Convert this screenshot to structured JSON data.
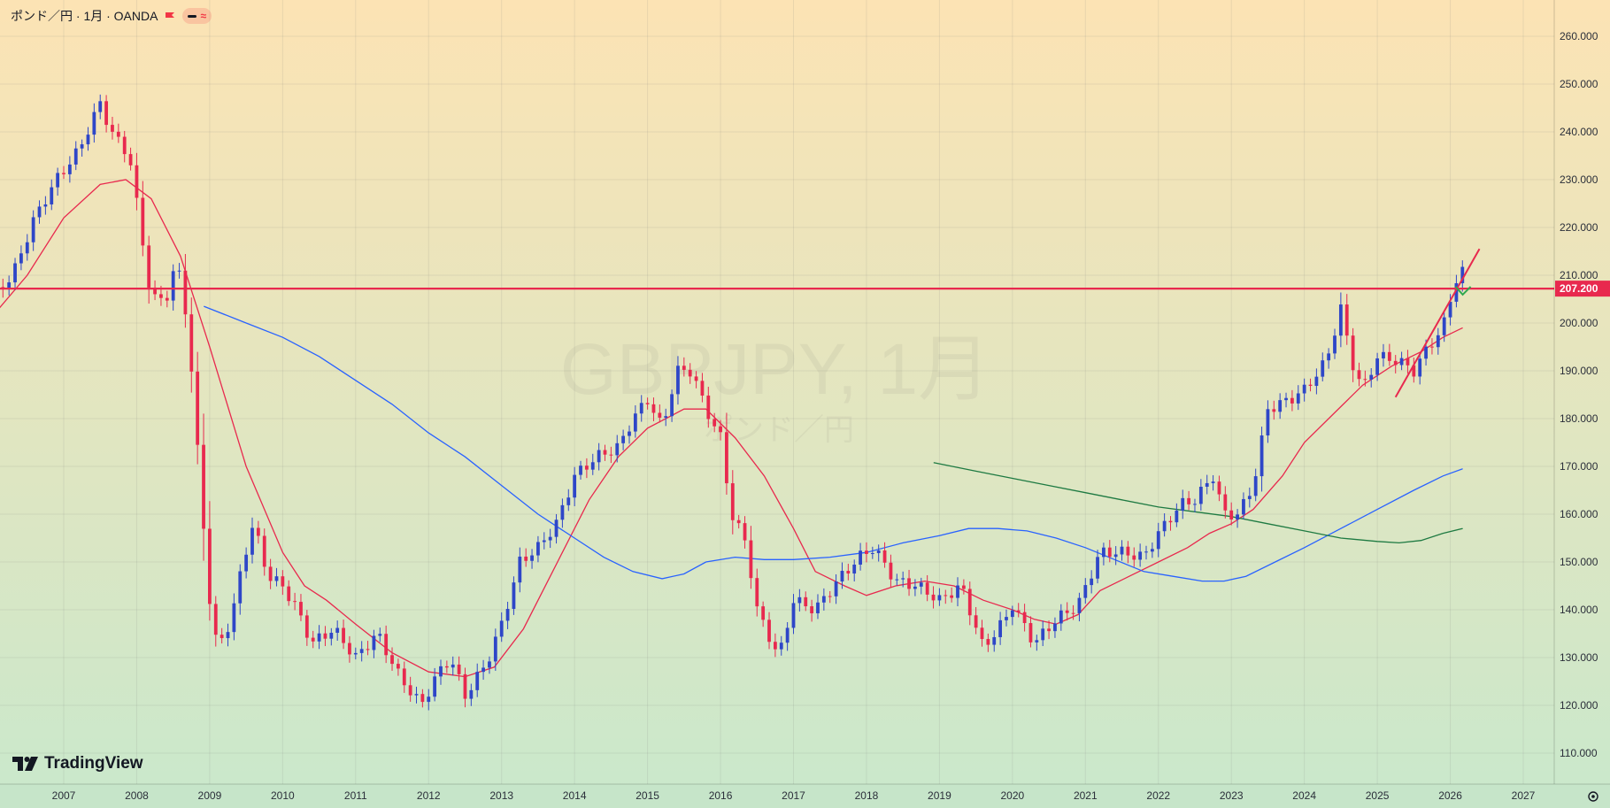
{
  "header": {
    "title": "ポンド／円 · 1月 · OANDA",
    "flag_icon": "red-flag-icon",
    "pill_icons": [
      "dash-icon",
      "wave-icon"
    ]
  },
  "watermark": {
    "symbol": "GBPJPY, 1月",
    "name": "ポンド／円"
  },
  "branding": {
    "logo_text": "TradingView"
  },
  "colors": {
    "bg_top": "#fce3b4",
    "bg_bottom": "#c9e8cc",
    "up_candle": "#2e46c8",
    "down_candle": "#e8294e",
    "ma_red": "#e8294e",
    "ma_blue": "#2962ff",
    "ma_green": "#1e7a42",
    "hline": "#e8294e",
    "marker_green": "#2fa84f"
  },
  "chart_data": {
    "type": "candlestick",
    "instrument": "GBPJPY",
    "timeframe": "1月",
    "source": "OANDA",
    "x_labels": [
      "2007",
      "2008",
      "2009",
      "2010",
      "2011",
      "2012",
      "2013",
      "2014",
      "2015",
      "2016",
      "2017",
      "2018",
      "2019",
      "2020",
      "2021",
      "2022",
      "2023",
      "2024",
      "2025",
      "2026",
      "2027"
    ],
    "y_ticks": [
      "110.000",
      "120.000",
      "130.000",
      "140.000",
      "150.000",
      "160.000",
      "170.000",
      "180.000",
      "190.000",
      "200.000",
      "210.000",
      "220.000",
      "230.000",
      "240.000",
      "250.000",
      "260.000"
    ],
    "ylim": [
      104,
      266
    ],
    "grid": true,
    "price_line": {
      "value": 207.2,
      "label": "207.200"
    },
    "anchors": [
      {
        "x": 2006.0,
        "y": 205
      },
      {
        "x": 2006.3,
        "y": 210
      },
      {
        "x": 2006.6,
        "y": 222
      },
      {
        "x": 2006.9,
        "y": 230
      },
      {
        "x": 2007.2,
        "y": 236
      },
      {
        "x": 2007.5,
        "y": 246
      },
      {
        "x": 2007.65,
        "y": 240
      },
      {
        "x": 2007.9,
        "y": 235
      },
      {
        "x": 2008.0,
        "y": 225
      },
      {
        "x": 2008.2,
        "y": 205
      },
      {
        "x": 2008.4,
        "y": 205
      },
      {
        "x": 2008.55,
        "y": 213
      },
      {
        "x": 2008.7,
        "y": 200
      },
      {
        "x": 2008.85,
        "y": 170
      },
      {
        "x": 2009.0,
        "y": 142
      },
      {
        "x": 2009.1,
        "y": 132
      },
      {
        "x": 2009.3,
        "y": 138
      },
      {
        "x": 2009.45,
        "y": 150
      },
      {
        "x": 2009.6,
        "y": 158
      },
      {
        "x": 2009.8,
        "y": 147
      },
      {
        "x": 2010.0,
        "y": 145
      },
      {
        "x": 2010.2,
        "y": 140
      },
      {
        "x": 2010.4,
        "y": 133
      },
      {
        "x": 2010.7,
        "y": 136
      },
      {
        "x": 2011.0,
        "y": 130
      },
      {
        "x": 2011.3,
        "y": 135
      },
      {
        "x": 2011.6,
        "y": 126
      },
      {
        "x": 2011.9,
        "y": 120
      },
      {
        "x": 2012.1,
        "y": 126
      },
      {
        "x": 2012.3,
        "y": 130
      },
      {
        "x": 2012.5,
        "y": 122
      },
      {
        "x": 2012.8,
        "y": 129
      },
      {
        "x": 2013.0,
        "y": 137
      },
      {
        "x": 2013.25,
        "y": 150
      },
      {
        "x": 2013.5,
        "y": 153
      },
      {
        "x": 2013.75,
        "y": 158
      },
      {
        "x": 2014.0,
        "y": 168
      },
      {
        "x": 2014.3,
        "y": 172
      },
      {
        "x": 2014.6,
        "y": 174
      },
      {
        "x": 2014.8,
        "y": 180
      },
      {
        "x": 2015.0,
        "y": 184
      },
      {
        "x": 2015.2,
        "y": 178
      },
      {
        "x": 2015.4,
        "y": 190
      },
      {
        "x": 2015.6,
        "y": 190
      },
      {
        "x": 2015.8,
        "y": 182
      },
      {
        "x": 2016.0,
        "y": 176
      },
      {
        "x": 2016.15,
        "y": 160
      },
      {
        "x": 2016.35,
        "y": 154
      },
      {
        "x": 2016.5,
        "y": 140
      },
      {
        "x": 2016.8,
        "y": 130
      },
      {
        "x": 2017.0,
        "y": 142
      },
      {
        "x": 2017.3,
        "y": 140
      },
      {
        "x": 2017.6,
        "y": 146
      },
      {
        "x": 2017.9,
        "y": 151
      },
      {
        "x": 2018.1,
        "y": 153
      },
      {
        "x": 2018.4,
        "y": 146
      },
      {
        "x": 2018.7,
        "y": 145
      },
      {
        "x": 2019.0,
        "y": 142
      },
      {
        "x": 2019.3,
        "y": 145
      },
      {
        "x": 2019.6,
        "y": 132
      },
      {
        "x": 2019.9,
        "y": 138
      },
      {
        "x": 2020.0,
        "y": 141
      },
      {
        "x": 2020.3,
        "y": 133
      },
      {
        "x": 2020.6,
        "y": 138
      },
      {
        "x": 2020.9,
        "y": 141
      },
      {
        "x": 2021.2,
        "y": 152
      },
      {
        "x": 2021.5,
        "y": 152
      },
      {
        "x": 2021.8,
        "y": 151
      },
      {
        "x": 2022.0,
        "y": 156
      },
      {
        "x": 2022.3,
        "y": 162
      },
      {
        "x": 2022.5,
        "y": 163
      },
      {
        "x": 2022.75,
        "y": 168
      },
      {
        "x": 2022.9,
        "y": 160
      },
      {
        "x": 2023.1,
        "y": 160
      },
      {
        "x": 2023.3,
        "y": 166
      },
      {
        "x": 2023.5,
        "y": 182
      },
      {
        "x": 2023.8,
        "y": 184
      },
      {
        "x": 2024.0,
        "y": 186
      },
      {
        "x": 2024.3,
        "y": 192
      },
      {
        "x": 2024.5,
        "y": 203
      },
      {
        "x": 2024.65,
        "y": 192
      },
      {
        "x": 2024.8,
        "y": 186
      },
      {
        "x": 2025.0,
        "y": 193
      },
      {
        "x": 2025.3,
        "y": 192
      },
      {
        "x": 2025.5,
        "y": 190
      },
      {
        "x": 2025.7,
        "y": 195
      },
      {
        "x": 2025.9,
        "y": 199
      },
      {
        "x": 2026.0,
        "y": 205
      },
      {
        "x": 2026.1,
        "y": 210
      },
      {
        "x": 2026.2,
        "y": 211
      }
    ],
    "series": [
      {
        "name": "",
        "color": "#e8294e",
        "points": [
          [
            2006.0,
            201
          ],
          [
            2006.5,
            210
          ],
          [
            2007.0,
            222
          ],
          [
            2007.5,
            229
          ],
          [
            2007.85,
            230
          ],
          [
            2008.2,
            226
          ],
          [
            2008.6,
            214
          ],
          [
            2009.0,
            195
          ],
          [
            2009.5,
            170
          ],
          [
            2010.0,
            152
          ],
          [
            2010.3,
            145
          ],
          [
            2010.6,
            142
          ],
          [
            2011.0,
            137
          ],
          [
            2011.5,
            131
          ],
          [
            2012.0,
            127
          ],
          [
            2012.5,
            126
          ],
          [
            2012.9,
            128
          ],
          [
            2013.3,
            136
          ],
          [
            2013.7,
            148
          ],
          [
            2014.2,
            163
          ],
          [
            2014.6,
            172
          ],
          [
            2015.0,
            178
          ],
          [
            2015.5,
            182
          ],
          [
            2015.8,
            182
          ],
          [
            2016.2,
            176
          ],
          [
            2016.6,
            168
          ],
          [
            2017.0,
            157
          ],
          [
            2017.3,
            148
          ],
          [
            2017.7,
            145
          ],
          [
            2018.0,
            143
          ],
          [
            2018.4,
            145
          ],
          [
            2018.8,
            146
          ],
          [
            2019.2,
            145
          ],
          [
            2019.6,
            142
          ],
          [
            2020.0,
            140
          ],
          [
            2020.3,
            138
          ],
          [
            2020.6,
            137
          ],
          [
            2020.9,
            139
          ],
          [
            2021.2,
            144
          ],
          [
            2021.6,
            147
          ],
          [
            2022.0,
            150
          ],
          [
            2022.4,
            153
          ],
          [
            2022.7,
            156
          ],
          [
            2023.0,
            158
          ],
          [
            2023.3,
            161
          ],
          [
            2023.7,
            168
          ],
          [
            2024.0,
            175
          ],
          [
            2024.4,
            181
          ],
          [
            2024.8,
            187
          ],
          [
            2025.2,
            191
          ],
          [
            2025.6,
            194
          ],
          [
            2025.9,
            197
          ],
          [
            2026.17,
            199
          ]
        ]
      },
      {
        "name": "",
        "color": "#2962ff",
        "points": [
          [
            2008.92,
            203.5
          ],
          [
            2009.5,
            200
          ],
          [
            2010.0,
            197
          ],
          [
            2010.5,
            193
          ],
          [
            2011.0,
            188
          ],
          [
            2011.5,
            183
          ],
          [
            2012.0,
            177
          ],
          [
            2012.5,
            172
          ],
          [
            2013.0,
            166
          ],
          [
            2013.5,
            160
          ],
          [
            2014.0,
            155
          ],
          [
            2014.4,
            151
          ],
          [
            2014.8,
            148
          ],
          [
            2015.2,
            146.5
          ],
          [
            2015.5,
            147.5
          ],
          [
            2015.8,
            150
          ],
          [
            2016.2,
            151
          ],
          [
            2016.6,
            150.5
          ],
          [
            2017.0,
            150.5
          ],
          [
            2017.5,
            151
          ],
          [
            2018.0,
            152
          ],
          [
            2018.5,
            154
          ],
          [
            2019.0,
            155.5
          ],
          [
            2019.4,
            157
          ],
          [
            2019.8,
            157
          ],
          [
            2020.2,
            156.5
          ],
          [
            2020.6,
            155
          ],
          [
            2021.0,
            153
          ],
          [
            2021.4,
            150.5
          ],
          [
            2021.8,
            148
          ],
          [
            2022.2,
            147
          ],
          [
            2022.6,
            146
          ],
          [
            2022.9,
            146
          ],
          [
            2023.2,
            147
          ],
          [
            2023.6,
            150
          ],
          [
            2024.0,
            153
          ],
          [
            2024.5,
            157
          ],
          [
            2025.0,
            161
          ],
          [
            2025.5,
            165
          ],
          [
            2025.9,
            168
          ],
          [
            2026.17,
            169.5
          ]
        ]
      },
      {
        "name": "",
        "color": "#1e7a42",
        "points": [
          [
            2018.92,
            170.8
          ],
          [
            2019.5,
            169
          ],
          [
            2020.0,
            167.5
          ],
          [
            2020.5,
            166
          ],
          [
            2021.0,
            164.5
          ],
          [
            2021.5,
            163
          ],
          [
            2022.0,
            161.5
          ],
          [
            2022.5,
            160.5
          ],
          [
            2023.0,
            159.5
          ],
          [
            2023.5,
            158
          ],
          [
            2024.0,
            156.5
          ],
          [
            2024.5,
            155
          ],
          [
            2025.0,
            154.3
          ],
          [
            2025.3,
            154
          ],
          [
            2025.6,
            154.5
          ],
          [
            2025.9,
            156
          ],
          [
            2026.17,
            157
          ]
        ]
      }
    ],
    "drawings": {
      "trendline": [
        [
          2025.25,
          184.5
        ],
        [
          2026.4,
          215.5
        ]
      ],
      "check_marker": {
        "x": 2026.17,
        "y": 206.5
      }
    },
    "candles_rule": "monthly OHLC candles generated by smooth interpolation through the anchor closes; up candles #2e46c8, down candles #e8294e"
  }
}
